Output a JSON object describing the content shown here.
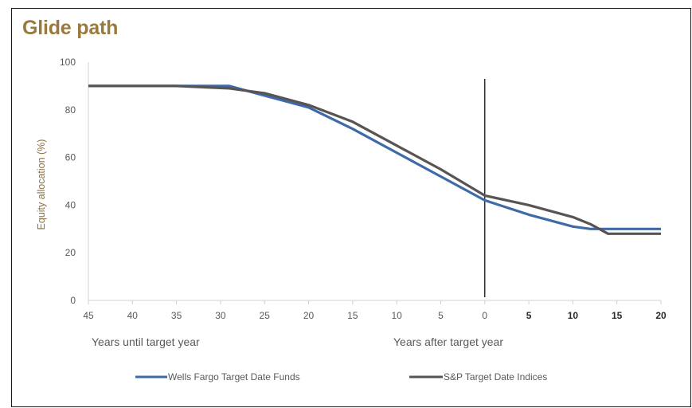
{
  "chart_data": {
    "type": "line",
    "title": "Glide path",
    "ylabel": "Equity allocation (%)",
    "ylim": [
      0,
      100
    ],
    "y_ticks": [
      "0",
      "20",
      "40",
      "60",
      "80",
      "100"
    ],
    "x_ticks_before": [
      "45",
      "40",
      "35",
      "30",
      "25",
      "20",
      "15",
      "10",
      "5",
      "0"
    ],
    "x_ticks_after": [
      "5",
      "10",
      "15",
      "20"
    ],
    "x_group_labels": {
      "before": "Years until target year",
      "after": "Years after target year"
    },
    "x_axis_note": "x values: negative = years until target year, positive = years after target year",
    "target_marker_x": 0,
    "legend": {
      "placement": "bottom"
    },
    "grid": false,
    "series": [
      {
        "name": "Wells Fargo Target Date Funds",
        "color": "#3e6aa8",
        "points": [
          [
            -45,
            90
          ],
          [
            -35,
            90
          ],
          [
            -29,
            90
          ],
          [
            -25,
            86
          ],
          [
            -20,
            81
          ],
          [
            -15,
            72
          ],
          [
            -10,
            62
          ],
          [
            -5,
            52
          ],
          [
            0,
            42
          ],
          [
            5,
            36
          ],
          [
            10,
            31
          ],
          [
            12,
            30
          ],
          [
            15,
            30
          ],
          [
            20,
            30
          ]
        ]
      },
      {
        "name": "S&P Target Date Indices",
        "color": "#595454",
        "points": [
          [
            -45,
            90
          ],
          [
            -35,
            90
          ],
          [
            -29,
            89
          ],
          [
            -25,
            87
          ],
          [
            -20,
            82
          ],
          [
            -15,
            75
          ],
          [
            -10,
            65
          ],
          [
            -5,
            55
          ],
          [
            0,
            44
          ],
          [
            5,
            40
          ],
          [
            10,
            35
          ],
          [
            12,
            32
          ],
          [
            14,
            28
          ],
          [
            20,
            28
          ]
        ]
      }
    ]
  }
}
